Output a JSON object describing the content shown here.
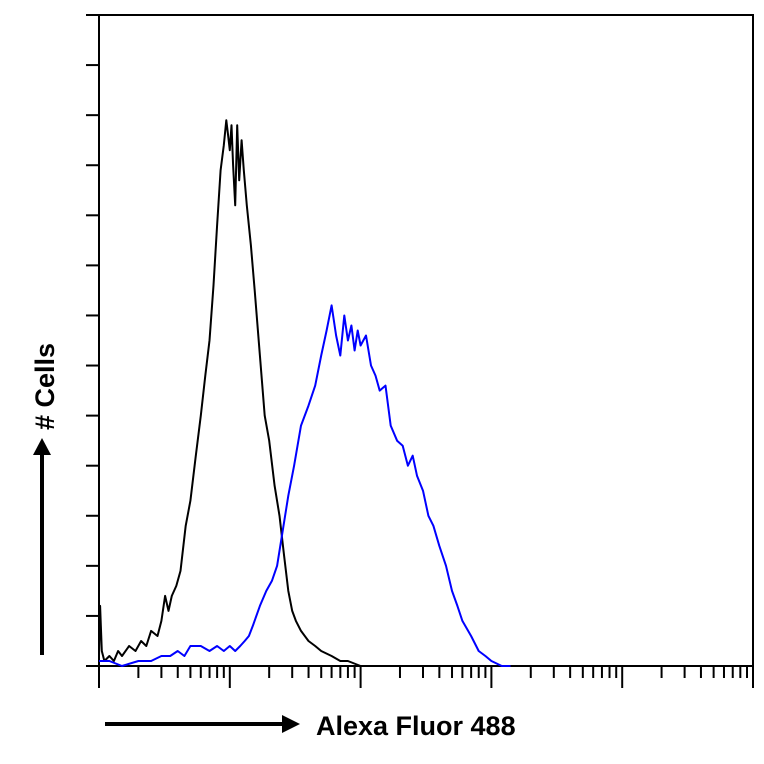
{
  "chart_data": {
    "type": "line",
    "title": "",
    "xlabel": "Alexa Fluor 488",
    "ylabel": "# Cells",
    "x_scale": "log",
    "xlim": [
      1,
      100000
    ],
    "ylim": [
      0,
      130
    ],
    "y_tick_count": 13,
    "grid": false,
    "legend": "none",
    "series": [
      {
        "color": "#000000",
        "points": [
          [
            1.0,
            2
          ],
          [
            1.02,
            12
          ],
          [
            1.05,
            3
          ],
          [
            1.1,
            1
          ],
          [
            1.2,
            2
          ],
          [
            1.3,
            1
          ],
          [
            1.4,
            3
          ],
          [
            1.5,
            2
          ],
          [
            1.7,
            4
          ],
          [
            1.9,
            3
          ],
          [
            2.1,
            5
          ],
          [
            2.3,
            4
          ],
          [
            2.5,
            7
          ],
          [
            2.8,
            6
          ],
          [
            3.0,
            9
          ],
          [
            3.2,
            14
          ],
          [
            3.4,
            11
          ],
          [
            3.6,
            14
          ],
          [
            3.9,
            16
          ],
          [
            4.2,
            19
          ],
          [
            4.6,
            28
          ],
          [
            5.0,
            33
          ],
          [
            5.5,
            42
          ],
          [
            6.0,
            50
          ],
          [
            6.5,
            58
          ],
          [
            7.0,
            65
          ],
          [
            7.5,
            76
          ],
          [
            8.0,
            88
          ],
          [
            8.5,
            99
          ],
          [
            9.0,
            104
          ],
          [
            9.4,
            109
          ],
          [
            9.7,
            106
          ],
          [
            10.0,
            103
          ],
          [
            10.3,
            108
          ],
          [
            10.6,
            100
          ],
          [
            11.0,
            92
          ],
          [
            11.4,
            108
          ],
          [
            11.8,
            97
          ],
          [
            12.3,
            105
          ],
          [
            12.8,
            99
          ],
          [
            13.5,
            92
          ],
          [
            14.5,
            84
          ],
          [
            15.5,
            75
          ],
          [
            17.0,
            62
          ],
          [
            18.5,
            50
          ],
          [
            20.0,
            45
          ],
          [
            22.0,
            36
          ],
          [
            24.0,
            30
          ],
          [
            26.0,
            22
          ],
          [
            28.0,
            15
          ],
          [
            30.0,
            11
          ],
          [
            32.0,
            9
          ],
          [
            35.0,
            7
          ],
          [
            40.0,
            5
          ],
          [
            45.0,
            4
          ],
          [
            50.0,
            3
          ],
          [
            60.0,
            2
          ],
          [
            70.0,
            1
          ],
          [
            80.0,
            1
          ],
          [
            100.0,
            0
          ]
        ]
      },
      {
        "color": "#0000ff",
        "points": [
          [
            1.0,
            1
          ],
          [
            1.2,
            1
          ],
          [
            1.5,
            0
          ],
          [
            2.0,
            1
          ],
          [
            2.5,
            1
          ],
          [
            3.0,
            2
          ],
          [
            3.5,
            2
          ],
          [
            4.0,
            3
          ],
          [
            4.5,
            2
          ],
          [
            5.0,
            4
          ],
          [
            6.0,
            4
          ],
          [
            7.0,
            3
          ],
          [
            8.0,
            4
          ],
          [
            9.0,
            3
          ],
          [
            10.0,
            4
          ],
          [
            11.0,
            3
          ],
          [
            12.0,
            4
          ],
          [
            13.0,
            5
          ],
          [
            14.0,
            6
          ],
          [
            15.0,
            8
          ],
          [
            17.0,
            12
          ],
          [
            19.0,
            15
          ],
          [
            21.0,
            17
          ],
          [
            23.0,
            20
          ],
          [
            25.0,
            26
          ],
          [
            28.0,
            34
          ],
          [
            31.0,
            40
          ],
          [
            35.0,
            48
          ],
          [
            40.0,
            52
          ],
          [
            45.0,
            56
          ],
          [
            50.0,
            62
          ],
          [
            55.0,
            67
          ],
          [
            60.0,
            72
          ],
          [
            65.0,
            66
          ],
          [
            70.0,
            62
          ],
          [
            75.0,
            70
          ],
          [
            80.0,
            65
          ],
          [
            85.0,
            68
          ],
          [
            90.0,
            63
          ],
          [
            95.0,
            67
          ],
          [
            100.0,
            64
          ],
          [
            110.0,
            66
          ],
          [
            120.0,
            60
          ],
          [
            130.0,
            58
          ],
          [
            140.0,
            55
          ],
          [
            155.0,
            56
          ],
          [
            170.0,
            48
          ],
          [
            190.0,
            45
          ],
          [
            210.0,
            44
          ],
          [
            230.0,
            40
          ],
          [
            250.0,
            42
          ],
          [
            270.0,
            38
          ],
          [
            300.0,
            35
          ],
          [
            330.0,
            30
          ],
          [
            360.0,
            28
          ],
          [
            400.0,
            24
          ],
          [
            450.0,
            20
          ],
          [
            500.0,
            15
          ],
          [
            550.0,
            12
          ],
          [
            600.0,
            9
          ],
          [
            700.0,
            6
          ],
          [
            800.0,
            3
          ],
          [
            900.0,
            2
          ],
          [
            1000.0,
            1
          ],
          [
            1200.0,
            0
          ],
          [
            1400.0,
            0
          ]
        ]
      }
    ]
  }
}
